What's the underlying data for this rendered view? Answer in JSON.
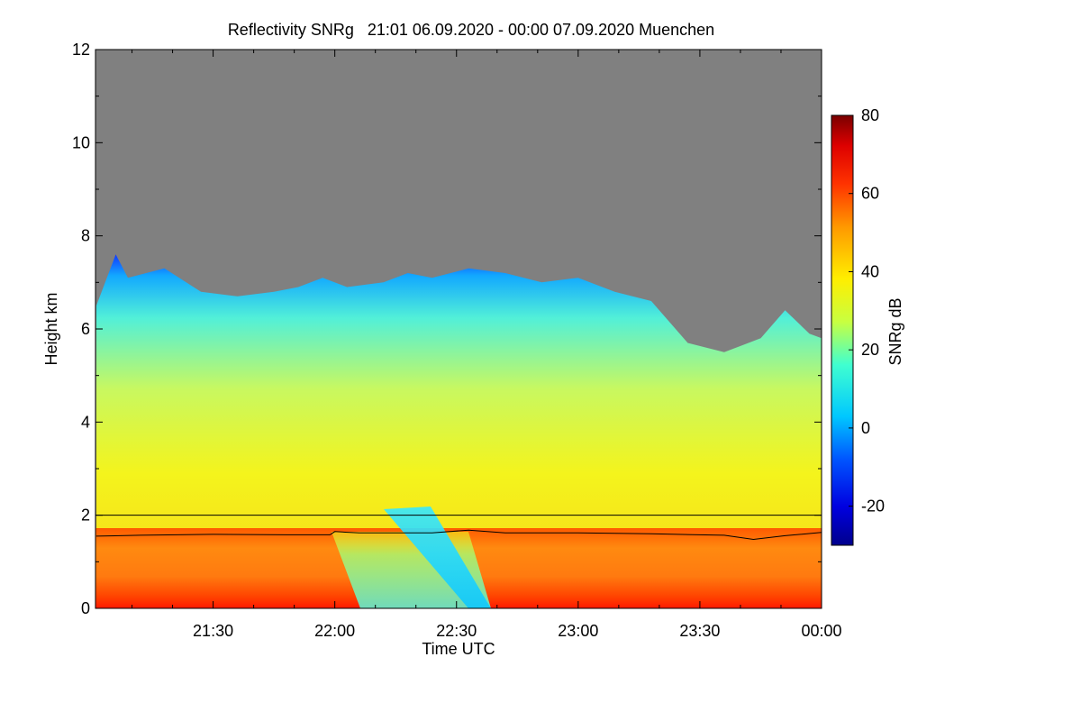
{
  "chart_data": {
    "type": "heatmap",
    "title": "Reflectivity SNRg   21:01 06.09.2020 - 00:00 07.09.2020 Muenchen",
    "xlabel": "Time UTC",
    "ylabel": "Height km",
    "x_range": [
      "21:01",
      "00:00"
    ],
    "x_ticks": [
      "21:30",
      "22:00",
      "22:30",
      "23:00",
      "23:30",
      "00:00"
    ],
    "ylim": [
      0,
      12
    ],
    "y_ticks": [
      "0",
      "2",
      "4",
      "6",
      "8",
      "10",
      "12"
    ],
    "colorbar": {
      "label": "SNRg dB",
      "range": [
        -30,
        80
      ],
      "ticks": [
        "-20",
        "0",
        "20",
        "40",
        "60",
        "80"
      ]
    },
    "no_data_color": "#808080",
    "reference_line_height_km": 2.0,
    "boundary_layer_height_km": [
      [
        21.02,
        1.55
      ],
      [
        21.2,
        1.57
      ],
      [
        21.5,
        1.59
      ],
      [
        21.8,
        1.58
      ],
      [
        21.98,
        1.58
      ],
      [
        22.0,
        1.65
      ],
      [
        22.1,
        1.62
      ],
      [
        22.4,
        1.62
      ],
      [
        22.55,
        1.68
      ],
      [
        22.7,
        1.62
      ],
      [
        23.0,
        1.62
      ],
      [
        23.3,
        1.6
      ],
      [
        23.6,
        1.57
      ],
      [
        23.72,
        1.48
      ],
      [
        23.85,
        1.56
      ],
      [
        24.0,
        1.63
      ]
    ],
    "cloud_top_height_km": [
      [
        21.02,
        6.5
      ],
      [
        21.1,
        7.6
      ],
      [
        21.15,
        7.1
      ],
      [
        21.3,
        7.3
      ],
      [
        21.45,
        6.8
      ],
      [
        21.6,
        6.7
      ],
      [
        21.75,
        6.8
      ],
      [
        21.85,
        6.9
      ],
      [
        21.95,
        7.1
      ],
      [
        22.05,
        6.9
      ],
      [
        22.2,
        7.0
      ],
      [
        22.3,
        7.2
      ],
      [
        22.4,
        7.1
      ],
      [
        22.55,
        7.3
      ],
      [
        22.7,
        7.2
      ],
      [
        22.85,
        7.0
      ],
      [
        23.0,
        7.1
      ],
      [
        23.15,
        6.8
      ],
      [
        23.3,
        6.6
      ],
      [
        23.45,
        5.7
      ],
      [
        23.6,
        5.5
      ],
      [
        23.75,
        5.8
      ],
      [
        23.85,
        6.4
      ],
      [
        23.95,
        5.9
      ],
      [
        24.0,
        5.8
      ]
    ]
  }
}
